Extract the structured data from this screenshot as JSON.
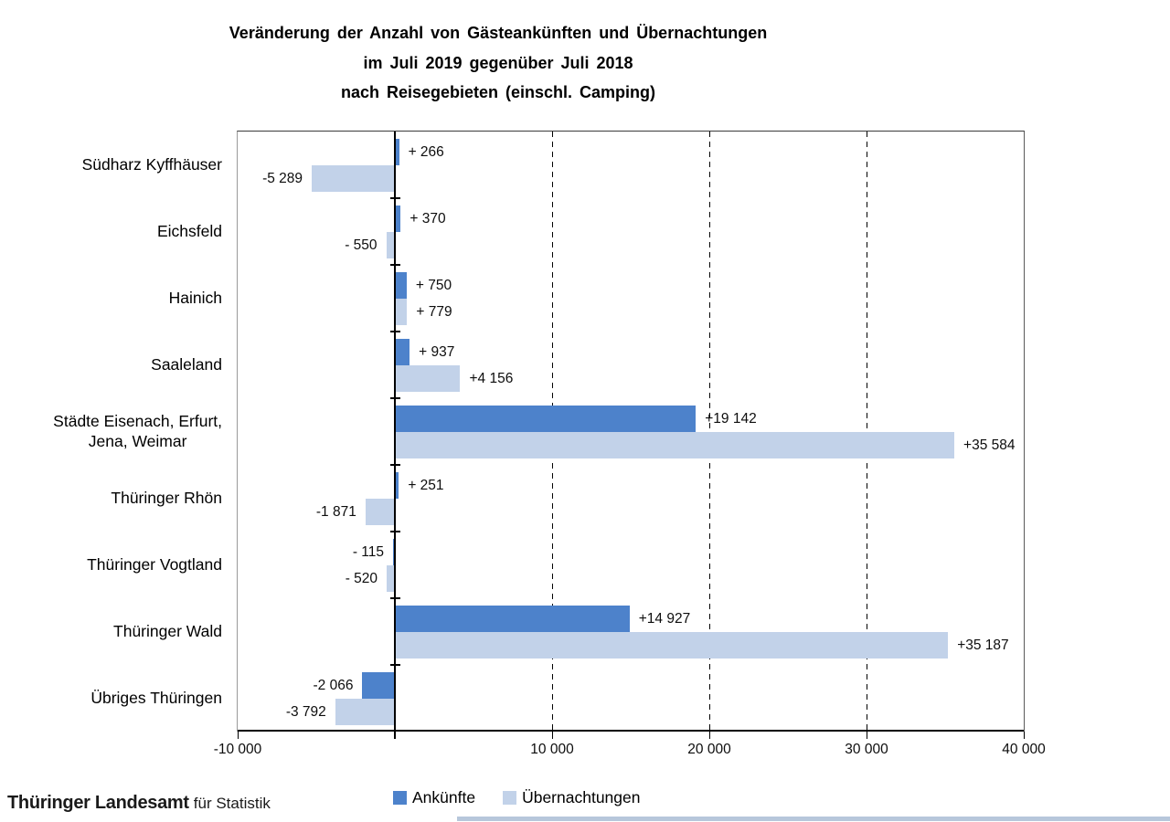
{
  "title": {
    "full": "Veränderung der Anzahl von Gästeankünften und Übernachtungen im Juli 2019 gegenüber Juli 2018 nach Reisegebieten (einschl. Camping)"
  },
  "chart_data": {
    "type": "bar",
    "orientation": "horizontal",
    "title_lines": [
      "Veränderung der Anzahl von Gästeankünften und Übernachtungen",
      "im Juli 2019 gegenüber Juli 2018",
      "nach Reisegebieten (einschl. Camping)"
    ],
    "categories": [
      "Südharz Kyffhäuser",
      "Eichsfeld",
      "Hainich",
      "Saaleland",
      "Städte Eisenach, Erfurt,\nJena, Weimar",
      "Thüringer Rhön",
      "Thüringer Vogtland",
      "Thüringer Wald",
      "Übriges Thüringen"
    ],
    "series": [
      {
        "name": "Ankünfte",
        "color": "#4d82cb",
        "values": [
          266,
          370,
          750,
          937,
          19142,
          251,
          -115,
          14927,
          -2066
        ],
        "value_labels": [
          "+ 266",
          "+ 370",
          "+ 750",
          "+ 937",
          "+19 142",
          "+ 251",
          "- 115",
          "+14 927",
          "-2 066"
        ]
      },
      {
        "name": "Übernachtungen",
        "color": "#c2d2e9",
        "values": [
          -5289,
          -550,
          779,
          4156,
          35584,
          -1871,
          -520,
          35187,
          -3792
        ],
        "value_labels": [
          "-5 289",
          "- 550",
          "+ 779",
          "+4 156",
          "+35 584",
          "-1 871",
          "- 520",
          "+35 187",
          "-3 792"
        ]
      }
    ],
    "x_axis": {
      "min": -10000,
      "max": 40000,
      "ticks": [
        {
          "value": -10000,
          "label": "-10 000"
        },
        {
          "value": 0,
          "label": ""
        },
        {
          "value": 10000,
          "label": "10 000"
        },
        {
          "value": 20000,
          "label": "20 000"
        },
        {
          "value": 30000,
          "label": "30 000"
        },
        {
          "value": 40000,
          "label": "40 000"
        }
      ],
      "gridlines": [
        10000,
        20000,
        30000
      ]
    },
    "legend_position": "bottom",
    "grid": "dashed-vertical"
  },
  "footer": {
    "publisher_bold": "Thüringer Landesamt",
    "publisher_light": "für Statistik",
    "accent_bar_color": "#b7c7db"
  }
}
